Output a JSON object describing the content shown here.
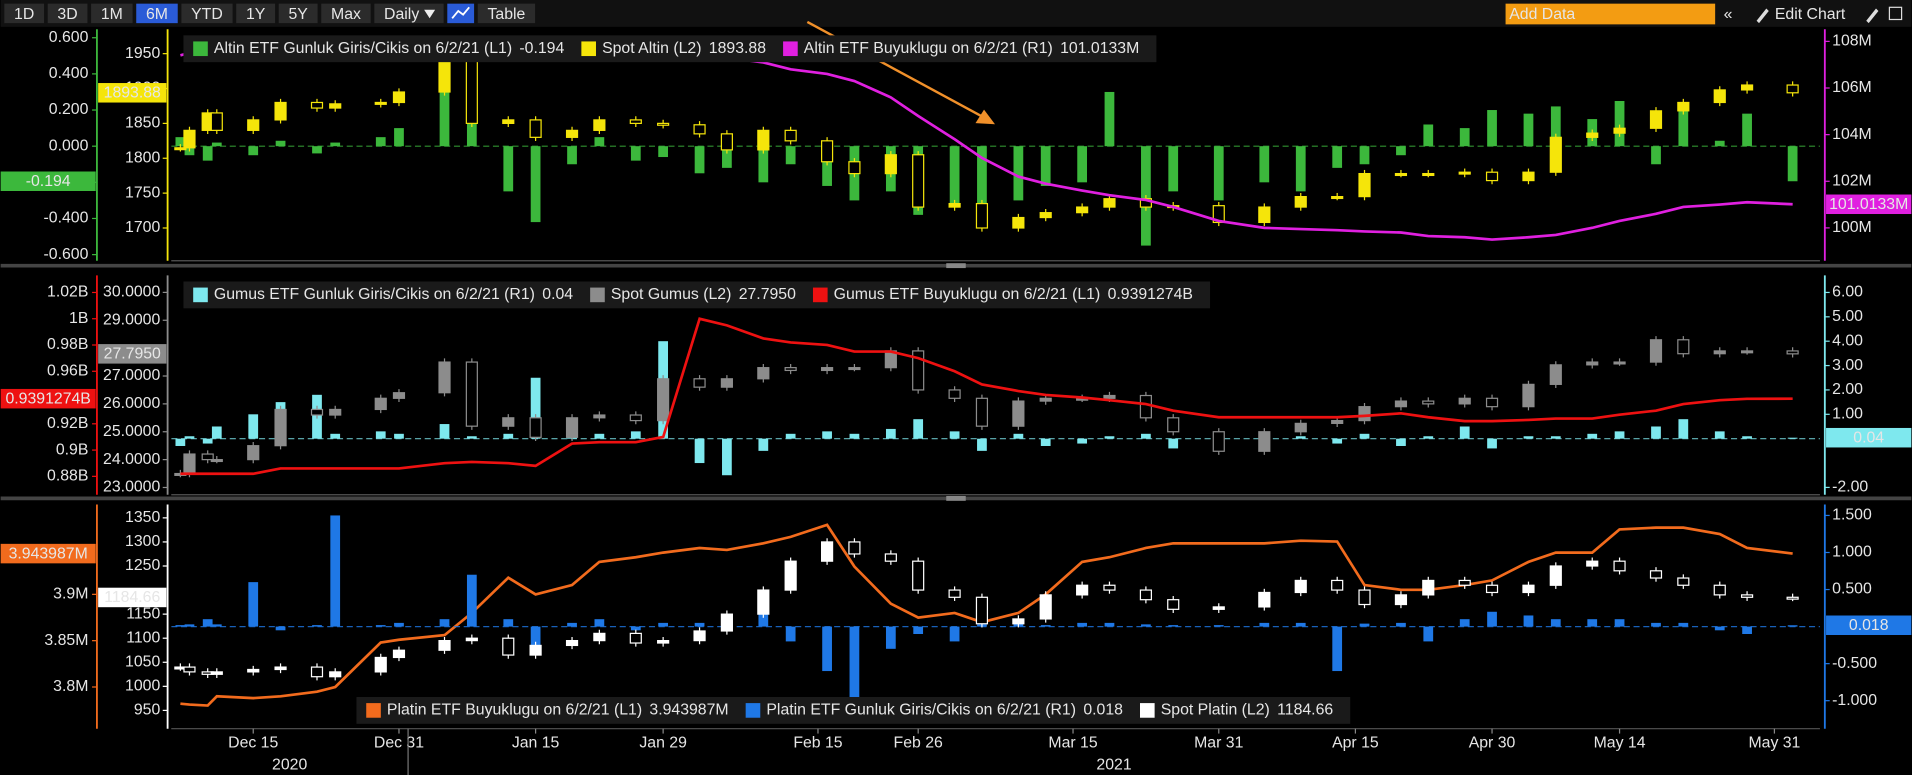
{
  "toolbar": {
    "ranges": [
      "1D",
      "3D",
      "1M",
      "6M",
      "YTD",
      "1Y",
      "5Y",
      "Max"
    ],
    "selected_range": "6M",
    "frequency": "Daily",
    "table": "Table",
    "add_data": "Add Data",
    "edit_chart": "Edit Chart"
  },
  "chart_data": [
    {
      "type": "combo",
      "legend": "top-left",
      "x": [
        "2020-12-07",
        "2020-12-08",
        "2020-12-10",
        "2020-12-11",
        "2020-12-15",
        "2020-12-18",
        "2020-12-22",
        "2020-12-24",
        "2020-12-29",
        "2020-12-31",
        "2021-01-05",
        "2021-01-08",
        "2021-01-12",
        "2021-01-15",
        "2021-01-19",
        "2021-01-22",
        "2021-01-26",
        "2021-01-29",
        "2021-02-02",
        "2021-02-05",
        "2021-02-09",
        "2021-02-12",
        "2021-02-16",
        "2021-02-19",
        "2021-02-23",
        "2021-02-26",
        "2021-03-02",
        "2021-03-05",
        "2021-03-09",
        "2021-03-12",
        "2021-03-16",
        "2021-03-19",
        "2021-03-23",
        "2021-03-26",
        "2021-03-31",
        "2021-04-05",
        "2021-04-09",
        "2021-04-13",
        "2021-04-16",
        "2021-04-20",
        "2021-04-23",
        "2021-04-27",
        "2021-04-30",
        "2021-05-04",
        "2021-05-07",
        "2021-05-11",
        "2021-05-14",
        "2021-05-18",
        "2021-05-21",
        "2021-05-25",
        "2021-05-28",
        "2021-06-02"
      ],
      "xlim": [
        "2020-12-06",
        "2021-06-05"
      ],
      "ylim": [
        -0.634,
        0.647
      ],
      "yticks": [
        {
          "value": 0.6,
          "label": "0.600"
        },
        {
          "value": 0.4,
          "label": "0.400"
        },
        {
          "value": 0.2,
          "label": "0.200"
        },
        {
          "value": 0,
          "label": "0.000"
        },
        {
          "value": -0.2,
          "label": "-0.200"
        },
        {
          "value": -0.4,
          "label": "-0.400"
        },
        {
          "value": -0.6,
          "label": "-0.600"
        }
      ],
      "y3lim": [
        1653,
        1985
      ],
      "y3ticks": [
        1950,
        1900,
        1850,
        1800,
        1750,
        1700
      ],
      "y2lim": [
        98.59,
        108.52
      ],
      "y2ticks": [
        {
          "value": 108,
          "label": "108M"
        },
        {
          "value": 106,
          "label": "106M"
        },
        {
          "value": 104,
          "label": "104M"
        },
        {
          "value": 102,
          "label": "102M"
        },
        {
          "value": 100,
          "label": "100M"
        }
      ],
      "series": [
        {
          "name": "Altin ETF Gunluk Giris/Cikis on 6/2/21 (L1)",
          "type": "bar",
          "axis": "y",
          "color": "#3cb83c",
          "last_label": "-0.194",
          "values": [
            0.05,
            -0.05,
            -0.08,
            0.02,
            -0.05,
            0.03,
            -0.04,
            0.02,
            0.05,
            0.1,
            0.45,
            0.48,
            -0.25,
            -0.42,
            -0.1,
            0.05,
            -0.08,
            -0.06,
            -0.15,
            -0.12,
            -0.2,
            -0.1,
            -0.22,
            -0.3,
            -0.25,
            -0.38,
            -0.32,
            -0.35,
            -0.3,
            -0.22,
            -0.2,
            0.3,
            -0.55,
            -0.25,
            -0.3,
            -0.2,
            -0.25,
            -0.12,
            -0.1,
            -0.05,
            0.12,
            0.1,
            0.2,
            0.18,
            0.22,
            0.15,
            0.25,
            -0.1,
            0.22,
            0.03,
            0.18,
            -0.194
          ]
        },
        {
          "name": "Spot Altin (L2)",
          "type": "candle",
          "axis": "y3",
          "color": "#f5e50a",
          "last_label": "1893.88",
          "values": [
            1815,
            1840,
            1865,
            1840,
            1855,
            1880,
            1872,
            1878,
            1880,
            1895,
            1950,
            1850,
            1855,
            1830,
            1840,
            1855,
            1850,
            1848,
            1835,
            1812,
            1840,
            1825,
            1795,
            1778,
            1805,
            1730,
            1735,
            1700,
            1715,
            1722,
            1730,
            1742,
            1730,
            1732,
            1708,
            1730,
            1745,
            1745,
            1778,
            1778,
            1778,
            1780,
            1768,
            1780,
            1830,
            1836,
            1843,
            1868,
            1880,
            1898,
            1905,
            1893.88
          ]
        },
        {
          "name": "Altin ETF Buyuklugu on 6/2/21 (R1)",
          "type": "line",
          "axis": "y2",
          "color": "#e020e0",
          "last_label": "101.0133M",
          "values": [
            107.4,
            107.5,
            107.4,
            107.5,
            107.6,
            107.6,
            107.5,
            107.5,
            107.6,
            107.7,
            107.8,
            107.7,
            107.7,
            107.6,
            107.6,
            107.6,
            107.6,
            107.5,
            107.4,
            107.3,
            107.1,
            106.8,
            106.6,
            106.3,
            105.6,
            104.8,
            103.8,
            103.0,
            102.2,
            101.9,
            101.6,
            101.4,
            101.2,
            100.9,
            100.3,
            100.0,
            99.95,
            99.9,
            99.85,
            99.8,
            99.65,
            99.6,
            99.5,
            99.6,
            99.7,
            100.0,
            100.3,
            100.6,
            100.9,
            101.0,
            101.1,
            101.0133
          ]
        }
      ]
    },
    {
      "type": "combo",
      "legend": "top-left",
      "x": [
        "2020-12-07",
        "2020-12-08",
        "2020-12-10",
        "2020-12-11",
        "2020-12-15",
        "2020-12-18",
        "2020-12-22",
        "2020-12-24",
        "2020-12-29",
        "2020-12-31",
        "2021-01-05",
        "2021-01-08",
        "2021-01-12",
        "2021-01-15",
        "2021-01-19",
        "2021-01-22",
        "2021-01-26",
        "2021-01-29",
        "2021-02-02",
        "2021-02-05",
        "2021-02-09",
        "2021-02-12",
        "2021-02-16",
        "2021-02-19",
        "2021-02-23",
        "2021-02-26",
        "2021-03-02",
        "2021-03-05",
        "2021-03-09",
        "2021-03-12",
        "2021-03-16",
        "2021-03-19",
        "2021-03-23",
        "2021-03-26",
        "2021-03-31",
        "2021-04-05",
        "2021-04-09",
        "2021-04-13",
        "2021-04-16",
        "2021-04-20",
        "2021-04-23",
        "2021-04-27",
        "2021-04-30",
        "2021-05-04",
        "2021-05-07",
        "2021-05-11",
        "2021-05-14",
        "2021-05-18",
        "2021-05-21",
        "2021-05-25",
        "2021-05-28",
        "2021-06-02"
      ],
      "xlim": [
        "2020-12-06",
        "2021-06-05"
      ],
      "ylim": [
        0.866,
        1.033
      ],
      "yticks": [
        {
          "value": 1.02,
          "label": "1.02B"
        },
        {
          "value": 1,
          "label": "1B"
        },
        {
          "value": 0.98,
          "label": "0.98B"
        },
        {
          "value": 0.96,
          "label": "0.96B"
        },
        {
          "value": 0.92,
          "label": "0.92B"
        },
        {
          "value": 0.9,
          "label": "0.9B"
        },
        {
          "value": 0.88,
          "label": "0.88B"
        }
      ],
      "y3lim": [
        22.74,
        30.61
      ],
      "y3ticks": [
        {
          "value": 30,
          "label": "30.0000"
        },
        {
          "value": 29,
          "label": "29.0000"
        },
        {
          "value": 27,
          "label": "27.0000"
        },
        {
          "value": 26,
          "label": "26.0000"
        },
        {
          "value": 25,
          "label": "25.0000"
        },
        {
          "value": 24,
          "label": "24.0000"
        },
        {
          "value": 23,
          "label": "23.0000"
        }
      ],
      "y2lim": [
        -2.3,
        6.7
      ],
      "y2ticks": [
        {
          "value": 6,
          "label": "6.00"
        },
        {
          "value": 5,
          "label": "5.00"
        },
        {
          "value": 4,
          "label": "4.00"
        },
        {
          "value": 3,
          "label": "3.00"
        },
        {
          "value": 2,
          "label": "2.00"
        },
        {
          "value": 1,
          "label": "1.00"
        },
        {
          "value": -2,
          "label": "-2.00"
        }
      ],
      "series": [
        {
          "name": "Gumus ETF Gunluk Giris/Cikis on 6/2/21 (R1)",
          "type": "bar",
          "axis": "y2",
          "color": "#7ee8ee",
          "last_label": "0.04",
          "values": [
            -0.3,
            0.1,
            -0.2,
            0.5,
            1.0,
            1.5,
            1.8,
            0.2,
            0.3,
            0.2,
            0.6,
            0.1,
            0.2,
            2.5,
            0.5,
            0.2,
            0.3,
            4.0,
            -1.0,
            -1.5,
            -0.5,
            0.2,
            0.3,
            0.2,
            0.4,
            0.8,
            0.3,
            -0.5,
            0.2,
            -0.3,
            -0.2,
            0.1,
            0.2,
            -0.4,
            -0.2,
            0.1,
            0.1,
            -0.2,
            0.2,
            -0.3,
            0.1,
            0.5,
            -0.4,
            0.1,
            0.1,
            0.2,
            0.3,
            0.5,
            0.8,
            0.3,
            0.1,
            0.04
          ]
        },
        {
          "name": "Spot Gumus (L2)",
          "type": "candle",
          "axis": "y3",
          "color": "#8c8c8c",
          "last_label": "27.7950",
          "values": [
            23.5,
            24.2,
            24.0,
            24.0,
            24.5,
            25.8,
            25.6,
            25.8,
            26.2,
            26.4,
            27.5,
            25.2,
            25.5,
            24.8,
            25.5,
            25.6,
            25.4,
            26.9,
            26.6,
            26.9,
            27.3,
            27.2,
            27.3,
            27.3,
            27.9,
            26.5,
            26.2,
            25.2,
            26.1,
            26.2,
            26.2,
            26.3,
            25.5,
            25.0,
            24.3,
            25.0,
            25.3,
            25.4,
            25.9,
            26.1,
            26.0,
            26.2,
            25.9,
            26.7,
            27.4,
            27.5,
            27.5,
            28.3,
            27.8,
            27.9,
            27.9,
            27.795
          ]
        },
        {
          "name": "Gumus ETF Buyuklugu on 6/2/21 (L1)",
          "type": "line",
          "axis": "y",
          "color": "#ee1111",
          "last_label": "0.9391274B",
          "values": [
            0.882,
            0.882,
            0.882,
            0.882,
            0.882,
            0.886,
            0.886,
            0.886,
            0.886,
            0.886,
            0.89,
            0.891,
            0.89,
            0.888,
            0.905,
            0.906,
            0.906,
            0.91,
            1.0,
            0.995,
            0.985,
            0.982,
            0.98,
            0.975,
            0.975,
            0.97,
            0.96,
            0.95,
            0.945,
            0.942,
            0.94,
            0.938,
            0.935,
            0.93,
            0.925,
            0.925,
            0.925,
            0.925,
            0.926,
            0.928,
            0.925,
            0.922,
            0.922,
            0.923,
            0.924,
            0.924,
            0.927,
            0.93,
            0.935,
            0.938,
            0.939,
            0.9391274
          ]
        }
      ]
    },
    {
      "type": "combo",
      "legend": "bottom-left",
      "x": [
        "2020-12-07",
        "2020-12-08",
        "2020-12-10",
        "2020-12-11",
        "2020-12-15",
        "2020-12-18",
        "2020-12-22",
        "2020-12-24",
        "2020-12-29",
        "2020-12-31",
        "2021-01-05",
        "2021-01-08",
        "2021-01-12",
        "2021-01-15",
        "2021-01-19",
        "2021-01-22",
        "2021-01-26",
        "2021-01-29",
        "2021-02-02",
        "2021-02-05",
        "2021-02-09",
        "2021-02-12",
        "2021-02-16",
        "2021-02-19",
        "2021-02-23",
        "2021-02-26",
        "2021-03-02",
        "2021-03-05",
        "2021-03-09",
        "2021-03-12",
        "2021-03-16",
        "2021-03-19",
        "2021-03-23",
        "2021-03-26",
        "2021-03-31",
        "2021-04-05",
        "2021-04-09",
        "2021-04-13",
        "2021-04-16",
        "2021-04-20",
        "2021-04-23",
        "2021-04-27",
        "2021-04-30",
        "2021-05-04",
        "2021-05-07",
        "2021-05-11",
        "2021-05-14",
        "2021-05-18",
        "2021-05-21",
        "2021-05-25",
        "2021-05-28",
        "2021-06-02"
      ],
      "xlim": [
        "2020-12-06",
        "2021-06-05"
      ],
      "xticks": [
        {
          "value": "2020-12-15",
          "label": "Dec 15"
        },
        {
          "value": "2020-12-31",
          "label": "Dec 31"
        },
        {
          "value": "2021-01-15",
          "label": "Jan 15"
        },
        {
          "value": "2021-01-29",
          "label": "Jan 29"
        },
        {
          "value": "2021-02-15",
          "label": "Feb 15"
        },
        {
          "value": "2021-02-26",
          "label": "Feb 26"
        },
        {
          "value": "2021-03-15",
          "label": "Mar 15"
        },
        {
          "value": "2021-03-31",
          "label": "Mar 31"
        },
        {
          "value": "2021-04-15",
          "label": "Apr 15"
        },
        {
          "value": "2021-04-30",
          "label": "Apr 30"
        },
        {
          "value": "2021-05-14",
          "label": "May 14"
        },
        {
          "value": "2021-05-31",
          "label": "May 31"
        }
      ],
      "xticks_major": [
        "2020",
        "2021"
      ],
      "ylim": [
        3.755,
        3.997
      ],
      "yticks": [
        {
          "value": 3.9,
          "label": "3.9M"
        },
        {
          "value": 3.85,
          "label": "3.85M"
        },
        {
          "value": 3.8,
          "label": "3.8M"
        }
      ],
      "y3lim": [
        912,
        1377.8
      ],
      "y3ticks": [
        1350,
        1300,
        1250,
        1150,
        1100,
        1050,
        1000,
        950
      ],
      "y2lim": [
        -1.378,
        1.648
      ],
      "y2ticks": [
        {
          "value": 1.5,
          "label": "1.500"
        },
        {
          "value": 1,
          "label": "1.000"
        },
        {
          "value": 0.5,
          "label": "0.500"
        },
        {
          "value": -0.5,
          "label": "-0.500"
        },
        {
          "value": -1,
          "label": "-1.000"
        }
      ],
      "series": [
        {
          "name": "Platin ETF Buyuklugu on 6/2/21 (L1)",
          "type": "line",
          "axis": "y",
          "color": "#f26b1d",
          "last_label": "3.943987M",
          "values": [
            3.782,
            3.781,
            3.78,
            3.79,
            3.788,
            3.79,
            3.795,
            3.8,
            3.848,
            3.851,
            3.856,
            3.88,
            3.918,
            3.9,
            3.91,
            3.935,
            3.94,
            3.945,
            3.95,
            3.948,
            3.955,
            3.962,
            3.975,
            3.93,
            3.89,
            3.875,
            3.88,
            3.87,
            3.88,
            3.9,
            3.935,
            3.94,
            3.95,
            3.955,
            3.955,
            3.955,
            3.958,
            3.957,
            3.91,
            3.905,
            3.905,
            3.91,
            3.915,
            3.935,
            3.945,
            3.945,
            3.97,
            3.972,
            3.972,
            3.965,
            3.95,
            3.943987
          ]
        },
        {
          "name": "Platin ETF Gunluk Giris/Cikis on 6/2/21 (R1)",
          "type": "bar",
          "axis": "y2",
          "color": "#1f78e6",
          "last_label": "0.018",
          "values": [
            0.02,
            0.03,
            0.1,
            0.03,
            0.6,
            -0.05,
            0.02,
            1.5,
            0.02,
            0.05,
            0.1,
            0.7,
            0.1,
            -0.25,
            0.05,
            0.1,
            -0.05,
            0.05,
            0.05,
            0.1,
            0.2,
            -0.2,
            -0.6,
            -1.0,
            -0.3,
            -0.1,
            -0.2,
            0.03,
            0.05,
            0.02,
            0.05,
            0.05,
            0.03,
            0.02,
            0.02,
            0.05,
            0.05,
            -0.6,
            0.04,
            0.05,
            -0.2,
            0.1,
            0.2,
            0.15,
            0.1,
            0.1,
            0.1,
            0.05,
            0.05,
            -0.05,
            -0.1,
            0.018
          ]
        },
        {
          "name": "Spot Platin (L2)",
          "type": "candle",
          "axis": "y3",
          "color": "#ffffff",
          "last_label": "1184.66",
          "values": [
            1040,
            1030,
            1025,
            1030,
            1035,
            1040,
            1020,
            1030,
            1060,
            1075,
            1095,
            1100,
            1065,
            1085,
            1095,
            1110,
            1090,
            1095,
            1115,
            1150,
            1200,
            1260,
            1300,
            1275,
            1260,
            1200,
            1185,
            1130,
            1140,
            1190,
            1210,
            1200,
            1180,
            1160,
            1165,
            1195,
            1220,
            1200,
            1170,
            1190,
            1220,
            1210,
            1195,
            1210,
            1250,
            1260,
            1240,
            1225,
            1210,
            1190,
            1185,
            1184.66
          ]
        }
      ]
    }
  ]
}
